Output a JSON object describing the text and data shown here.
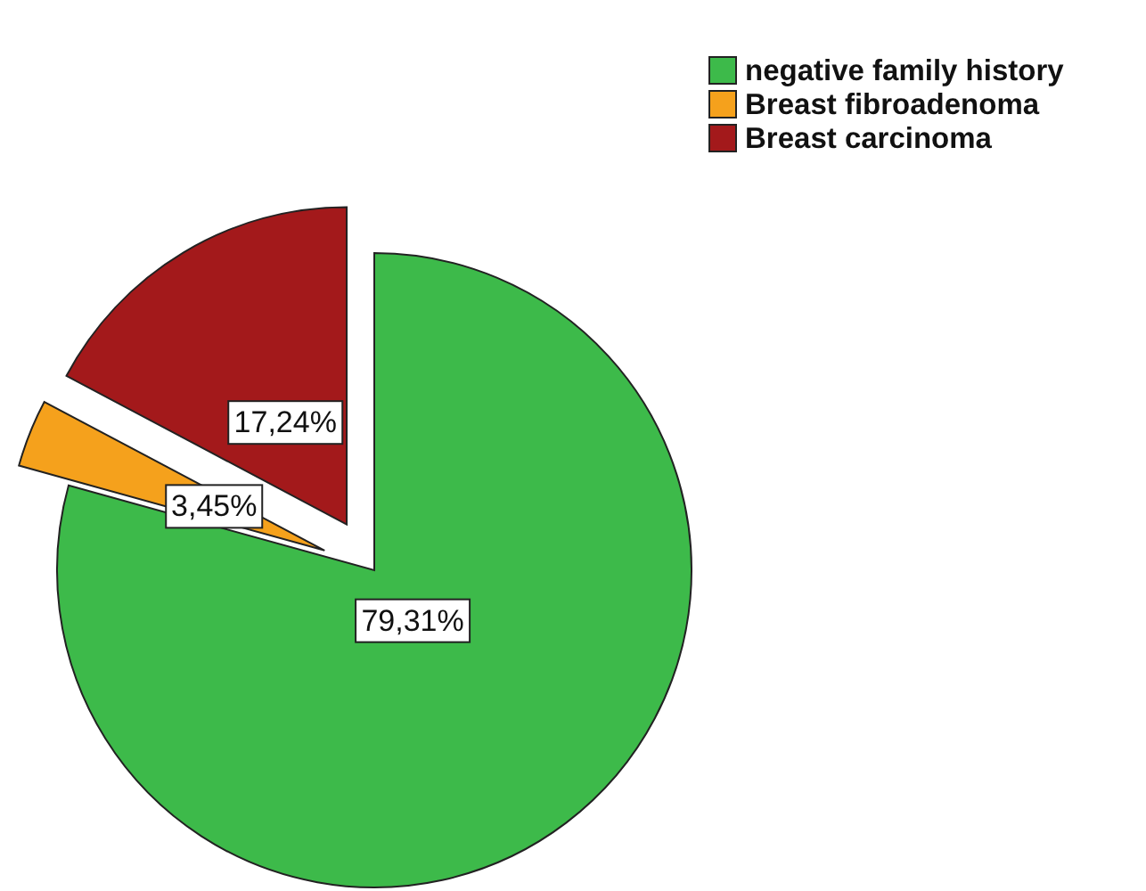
{
  "chart_data": {
    "type": "pie",
    "categories": [
      "negative family history",
      "Breast fibroadenoma",
      "Breast carcinoma"
    ],
    "values": [
      79.31,
      3.45,
      17.24
    ],
    "colors": [
      "#3dba4a",
      "#f5a11c",
      "#a3191b"
    ],
    "value_labels": [
      "79,31%",
      "3,45%",
      "17,24%"
    ],
    "legend": "top right"
  }
}
